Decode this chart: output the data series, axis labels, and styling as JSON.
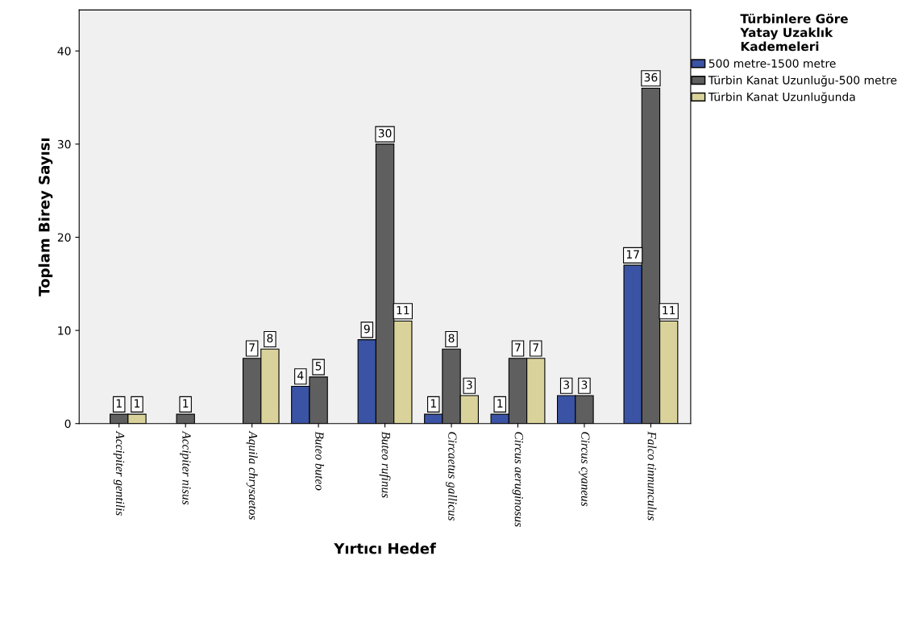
{
  "chart_data": {
    "type": "bar",
    "xlabel": "Yırtıcı Hedef",
    "ylabel": "Toplam Birey Sayısı",
    "legend_title": "Türbinlere Göre\nYatay Uzaklık\nKademeleri",
    "categories": [
      "Accipiter gentilis",
      "Accipiter nisus",
      "Aquila chrysaetos",
      "Buteo buteo",
      "Buteo rufinus",
      "Circaetus gallicus",
      "Circus aeruginosus",
      "Circus cyaneus",
      "Falco tinnunculus"
    ],
    "series": [
      {
        "name": "500 metre-1500 metre",
        "color": "#3a53a4",
        "values": [
          null,
          null,
          null,
          4,
          9,
          1,
          1,
          3,
          17
        ]
      },
      {
        "name": "Türbin Kanat Uzunluğu-500 metre",
        "color": "#5f5f5f",
        "values": [
          1,
          1,
          7,
          5,
          30,
          8,
          7,
          3,
          36
        ]
      },
      {
        "name": "Türbin Kanat Uzunluğunda",
        "color": "#d9d39b",
        "values": [
          1,
          null,
          8,
          null,
          11,
          3,
          7,
          null,
          11
        ]
      }
    ],
    "ylim": [
      0,
      44.4
    ],
    "yticks": [
      0,
      10,
      20,
      30,
      40
    ],
    "data_labels": true,
    "legend": "top right",
    "grid": false
  }
}
